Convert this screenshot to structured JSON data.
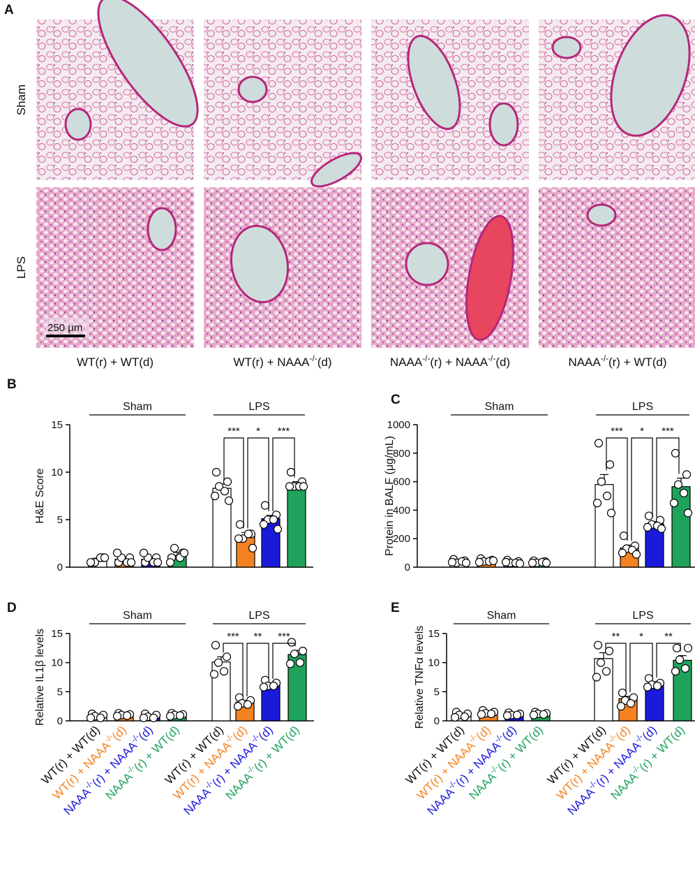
{
  "panel_a": {
    "label": "A",
    "rows": [
      "Sham",
      "LPS"
    ],
    "columns": [
      [
        "WT(r) + WT(d)"
      ],
      [
        "WT(r) + NAAA",
        "-/-",
        "(d)"
      ],
      [
        "NAAA",
        "-/-",
        "(r) + NAAA",
        "-/-",
        "(d)"
      ],
      [
        "NAAA",
        "-/-",
        "(r) + WT(d)"
      ]
    ],
    "scale_bar": "250 μm"
  },
  "chart_data": [
    {
      "label": "B",
      "type": "bar",
      "ylabel": "H&E Score",
      "ylim": [
        0,
        15
      ],
      "yticks": [
        0,
        5,
        10,
        15
      ],
      "groups": [
        {
          "name": "Sham",
          "range": [
            0,
            3
          ]
        },
        {
          "name": "LPS",
          "range": [
            4,
            7
          ]
        }
      ],
      "colors": [
        "#ffffff",
        "#f58220",
        "#1a1adb",
        "#1fa35c",
        "#ffffff",
        "#f58220",
        "#1a1adb",
        "#1fa35c"
      ],
      "values": [
        0.75,
        0.83,
        0.83,
        1.25,
        8.3,
        3.3,
        5.1,
        8.7
      ],
      "errors": [
        0.2,
        0.2,
        0.2,
        0.3,
        0.45,
        0.35,
        0.35,
        0.3
      ],
      "points": [
        [
          0.5,
          1,
          0.5,
          1,
          0.5,
          1
        ],
        [
          0.5,
          1,
          1,
          0.5,
          1.5,
          0.5
        ],
        [
          0.5,
          1,
          1,
          0.5,
          1.5,
          0.5
        ],
        [
          1,
          1.5,
          2,
          1,
          0.5,
          1.5
        ],
        [
          10,
          9,
          8.5,
          8,
          7.5,
          7
        ],
        [
          4.5,
          3.5,
          3,
          3.5,
          3,
          2
        ],
        [
          6.5,
          5.5,
          5,
          5,
          4.5,
          4
        ],
        [
          10,
          9,
          8.5,
          8.5,
          8.5,
          8.5
        ]
      ],
      "comparisons": [
        {
          "pair": [
            4,
            5
          ],
          "label": "***"
        },
        {
          "pair": [
            5,
            6
          ],
          "label": "*"
        },
        {
          "pair": [
            6,
            7
          ],
          "label": "***"
        }
      ]
    },
    {
      "label": "C",
      "type": "bar",
      "ylabel": "Protein in BALF (μg/mL)",
      "ylim": [
        0,
        1000
      ],
      "yticks": [
        0,
        200,
        400,
        600,
        800,
        1000
      ],
      "groups": [
        {
          "name": "Sham",
          "range": [
            0,
            3
          ]
        },
        {
          "name": "LPS",
          "range": [
            4,
            7
          ]
        }
      ],
      "colors": [
        "#ffffff",
        "#f58220",
        "#1a1adb",
        "#1fa35c",
        "#ffffff",
        "#f58220",
        "#1a1adb",
        "#1fa35c"
      ],
      "values": [
        40,
        45,
        35,
        35,
        580,
        135,
        305,
        565
      ],
      "errors": [
        5,
        5,
        5,
        3,
        70,
        20,
        15,
        60
      ],
      "points": [
        [
          55,
          45,
          30,
          40,
          35,
          30
        ],
        [
          60,
          50,
          40,
          40,
          35,
          45
        ],
        [
          50,
          40,
          30,
          30,
          35,
          25
        ],
        [
          45,
          40,
          30,
          35,
          30,
          30
        ],
        [
          870,
          720,
          600,
          500,
          450,
          380
        ],
        [
          220,
          150,
          130,
          120,
          100,
          90
        ],
        [
          360,
          330,
          300,
          290,
          280,
          270
        ],
        [
          800,
          650,
          580,
          520,
          450,
          380
        ]
      ],
      "comparisons": [
        {
          "pair": [
            4,
            5
          ],
          "label": "***"
        },
        {
          "pair": [
            5,
            6
          ],
          "label": "*"
        },
        {
          "pair": [
            6,
            7
          ],
          "label": "***"
        }
      ]
    },
    {
      "label": "D",
      "type": "bar",
      "ylabel": "Relative IL1β levels",
      "ylim": [
        0,
        15
      ],
      "yticks": [
        0,
        5,
        10,
        15
      ],
      "groups": [
        {
          "name": "Sham",
          "range": [
            0,
            3
          ]
        },
        {
          "name": "LPS",
          "range": [
            4,
            7
          ]
        }
      ],
      "categories": [
        [
          "WT(r) + WT(d)"
        ],
        [
          "WT(r) + NAAA",
          "-/-",
          "(d)"
        ],
        [
          "NAAA",
          "-/-",
          "(r) + NAAA",
          "-/-",
          "(d)"
        ],
        [
          "NAAA",
          "-/-",
          "(r) + WT(d)"
        ],
        [
          "WT(r) + WT(d)"
        ],
        [
          "WT(r) + NAAA",
          "-/-",
          "(d)"
        ],
        [
          "NAAA",
          "-/-",
          "(r) + NAAA",
          "-/-",
          "(d)"
        ],
        [
          "NAAA",
          "-/-",
          "(r) + WT(d)"
        ]
      ],
      "label_colors": [
        "#111111",
        "#f58220",
        "#1a1adb",
        "#1fa35c",
        "#111111",
        "#f58220",
        "#1a1adb",
        "#1fa35c"
      ],
      "colors": [
        "#ffffff",
        "#f58220",
        "#1a1adb",
        "#1fa35c",
        "#ffffff",
        "#f58220",
        "#1a1adb",
        "#1fa35c"
      ],
      "values": [
        0.8,
        1.0,
        0.8,
        1.0,
        10.1,
        3.2,
        6.3,
        11.4
      ],
      "errors": [
        0.15,
        0.1,
        0.15,
        0.1,
        0.9,
        0.3,
        0.2,
        0.7
      ],
      "points": [
        [
          1.2,
          1,
          0.8,
          0.5,
          0.5
        ],
        [
          1.3,
          1.1,
          1,
          0.9,
          0.8
        ],
        [
          1.2,
          1,
          0.7,
          0.5,
          0.5
        ],
        [
          1.3,
          1.1,
          1,
          0.9,
          0.8
        ],
        [
          13,
          11,
          10,
          8.5,
          8
        ],
        [
          4,
          3.5,
          3,
          2.8,
          2.5
        ],
        [
          7,
          6.5,
          6,
          6,
          5.8
        ],
        [
          13.5,
          12,
          11.5,
          10,
          9.8
        ]
      ],
      "comparisons": [
        {
          "pair": [
            4,
            5
          ],
          "label": "***"
        },
        {
          "pair": [
            5,
            6
          ],
          "label": "**"
        },
        {
          "pair": [
            6,
            7
          ],
          "label": "***"
        }
      ]
    },
    {
      "label": "E",
      "type": "bar",
      "ylabel": "Relative TNFα levels",
      "ylim": [
        0,
        15
      ],
      "yticks": [
        0,
        5,
        10,
        15
      ],
      "groups": [
        {
          "name": "Sham",
          "range": [
            0,
            3
          ]
        },
        {
          "name": "LPS",
          "range": [
            4,
            7
          ]
        }
      ],
      "categories": [
        [
          "WT(r) + WT(d)"
        ],
        [
          "WT(r) + NAAA",
          "-/-",
          "(d)"
        ],
        [
          "NAAA",
          "-/-",
          "(r) + NAAA",
          "-/-",
          "(d)"
        ],
        [
          "NAAA",
          "-/-",
          "(r) + WT(d)"
        ],
        [
          "WT(r) + WT(d)"
        ],
        [
          "WT(r) + NAAA",
          "-/-",
          "(d)"
        ],
        [
          "NAAA",
          "-/-",
          "(r) + NAAA",
          "-/-",
          "(d)"
        ],
        [
          "NAAA",
          "-/-",
          "(r) + WT(d)"
        ]
      ],
      "label_colors": [
        "#111111",
        "#f58220",
        "#1a1adb",
        "#1fa35c",
        "#111111",
        "#f58220",
        "#1a1adb",
        "#1fa35c"
      ],
      "colors": [
        "#ffffff",
        "#f58220",
        "#1a1adb",
        "#1fa35c",
        "#ffffff",
        "#f58220",
        "#1a1adb",
        "#1fa35c"
      ],
      "values": [
        1.0,
        1.4,
        1.1,
        1.2,
        10.7,
        3.8,
        6.4,
        10.4
      ],
      "errors": [
        0.2,
        0.15,
        0.1,
        0.1,
        1.0,
        0.4,
        0.3,
        0.8
      ],
      "points": [
        [
          1.5,
          1.2,
          1,
          0.7,
          0.6
        ],
        [
          1.8,
          1.5,
          1.3,
          1.2,
          1.1
        ],
        [
          1.4,
          1.2,
          1,
          1,
          0.9
        ],
        [
          1.5,
          1.3,
          1.2,
          1.1,
          1
        ],
        [
          13,
          12,
          10,
          8.5,
          7.5
        ],
        [
          4.8,
          4,
          3.5,
          3,
          2.5
        ],
        [
          7.3,
          6.5,
          6.2,
          6,
          5.8
        ],
        [
          12.5,
          12.5,
          10.5,
          9,
          8.5
        ]
      ],
      "comparisons": [
        {
          "pair": [
            4,
            5
          ],
          "label": "**"
        },
        {
          "pair": [
            5,
            6
          ],
          "label": "*"
        },
        {
          "pair": [
            6,
            7
          ],
          "label": "**"
        }
      ]
    }
  ]
}
